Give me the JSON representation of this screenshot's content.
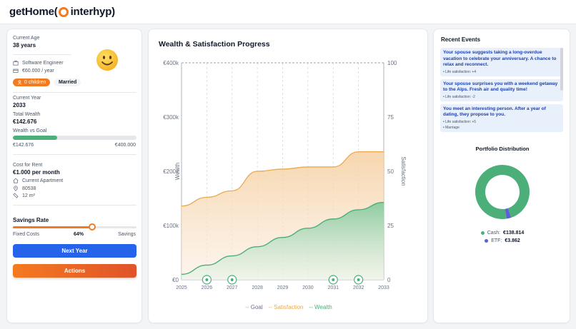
{
  "brand": {
    "name_left": "getHome(",
    "name_right": "interhyp)"
  },
  "profile": {
    "age_label": "Current Age",
    "age_value": "38 years",
    "job": "Software Engineer",
    "salary": "€60.000 / year",
    "children": "0 children",
    "status": "Married",
    "year_label": "Current Year",
    "year_value": "2033",
    "wealth_label": "Total Wealth",
    "wealth_value": "€142.676",
    "goal_label": "Wealth vs Goal",
    "goal_current": "€142.676",
    "goal_target": "€400.000",
    "goal_progress": 0.357,
    "rent_label": "Cost for Rent",
    "rent_value": "€1.000 per month",
    "apartment": "Current Apartment",
    "zip": "80538",
    "size": "12 m²",
    "savings_label": "Savings Rate",
    "savings_left": "Fixed Costs",
    "savings_pct": "64%",
    "savings_right": "Savings",
    "savings_fraction": 0.64,
    "next_button": "Next Year",
    "actions_button": "Actions"
  },
  "chart_data": {
    "type": "area",
    "title": "Wealth & Satisfaction Progress",
    "x": [
      2025,
      2026,
      2027,
      2028,
      2029,
      2030,
      2031,
      2032,
      2033
    ],
    "x_tick_labels": [
      "2025",
      "2026",
      "2027",
      "2028",
      "2029",
      "2030",
      "2031",
      "2032",
      "2033"
    ],
    "ylabel": "Wealth",
    "ylabel_right": "Satisfaction",
    "ylim": [
      0,
      400000
    ],
    "ylim_right": [
      0,
      100
    ],
    "y_tick_labels": [
      "€0",
      "€100k",
      "€200k",
      "€300k",
      "€400k"
    ],
    "y_ticks": [
      0,
      100000,
      200000,
      300000,
      400000
    ],
    "y_right_tick_labels": [
      "0",
      "25",
      "50",
      "75",
      "100"
    ],
    "y_right_ticks": [
      0,
      25,
      50,
      75,
      100
    ],
    "series": [
      {
        "name": "Goal",
        "axis": "left",
        "color": "#9ca3af",
        "values": [
          400000,
          400000,
          400000,
          400000,
          400000,
          400000,
          400000,
          400000,
          400000
        ]
      },
      {
        "name": "Satisfaction",
        "axis": "right",
        "color": "#e8a94f",
        "values": [
          34,
          38,
          41,
          50,
          51,
          52,
          52,
          59,
          59
        ]
      },
      {
        "name": "Wealth",
        "axis": "left",
        "color": "#4caf7a",
        "values": [
          10000,
          27000,
          44000,
          61000,
          78000,
          95000,
          112000,
          129000,
          142676
        ]
      }
    ],
    "event_markers": [
      2026,
      2027,
      2031,
      2032
    ],
    "legend": [
      "Goal",
      "Satisfaction",
      "Wealth"
    ]
  },
  "events": {
    "title": "Recent Events",
    "items": [
      {
        "text": "Your spouse suggests taking a long-overdue vacation to celebrate your anniversary. A chance to relax and reconnect.",
        "meta": [
          "• Life satisfaction: +4"
        ]
      },
      {
        "text": "Your spouse surprises you with a weekend getaway to the Alps. Fresh air and quality time!",
        "meta": [
          "• Life satisfaction: -2"
        ]
      },
      {
        "text": "You meet an interesting person. After a year of dating, they propose to you.",
        "meta": [
          "• Life satisfaction: +5",
          "• Marriage"
        ]
      }
    ]
  },
  "portfolio": {
    "title": "Portfolio Distribution",
    "items": [
      {
        "name": "Cash:",
        "value": "€138.814",
        "amount": 138814,
        "color": "#4caf7a"
      },
      {
        "name": "ETF:",
        "value": "€3.862",
        "amount": 3862,
        "color": "#5b5fd6"
      }
    ]
  }
}
